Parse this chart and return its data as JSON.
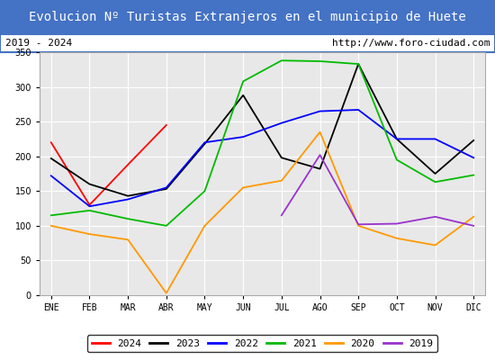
{
  "title": "Evolucion Nº Turistas Extranjeros en el municipio de Huete",
  "subtitle_left": "2019 - 2024",
  "subtitle_right": "http://www.foro-ciudad.com",
  "months": [
    "ENE",
    "FEB",
    "MAR",
    "ABR",
    "MAY",
    "JUN",
    "JUL",
    "AGO",
    "SEP",
    "OCT",
    "NOV",
    "DIC"
  ],
  "series": {
    "2024": {
      "color": "#ff0000",
      "data": [
        220,
        130,
        188,
        245,
        null,
        null,
        null,
        null,
        null,
        null,
        null,
        null
      ]
    },
    "2023": {
      "color": "#000000",
      "data": [
        197,
        160,
        143,
        153,
        218,
        288,
        198,
        182,
        333,
        225,
        175,
        223
      ]
    },
    "2022": {
      "color": "#0000ff",
      "data": [
        172,
        128,
        138,
        155,
        220,
        228,
        248,
        265,
        267,
        225,
        225,
        198
      ]
    },
    "2021": {
      "color": "#00bb00",
      "data": [
        115,
        122,
        110,
        100,
        150,
        308,
        338,
        337,
        333,
        195,
        163,
        173
      ]
    },
    "2020": {
      "color": "#ff9900",
      "data": [
        100,
        88,
        80,
        3,
        100,
        155,
        165,
        235,
        100,
        82,
        72,
        113
      ]
    },
    "2019": {
      "color": "#9933cc",
      "data": [
        null,
        null,
        null,
        null,
        null,
        null,
        115,
        202,
        102,
        103,
        113,
        100
      ]
    }
  },
  "ylim": [
    0,
    350
  ],
  "yticks": [
    0,
    50,
    100,
    150,
    200,
    250,
    300,
    350
  ],
  "title_bg_color": "#4472c4",
  "title_text_color": "#ffffff",
  "plot_bg_color": "#e8e8e8",
  "grid_color": "#ffffff",
  "title_fontsize": 10,
  "subtitle_fontsize": 8,
  "tick_fontsize": 7,
  "legend_fontsize": 8
}
